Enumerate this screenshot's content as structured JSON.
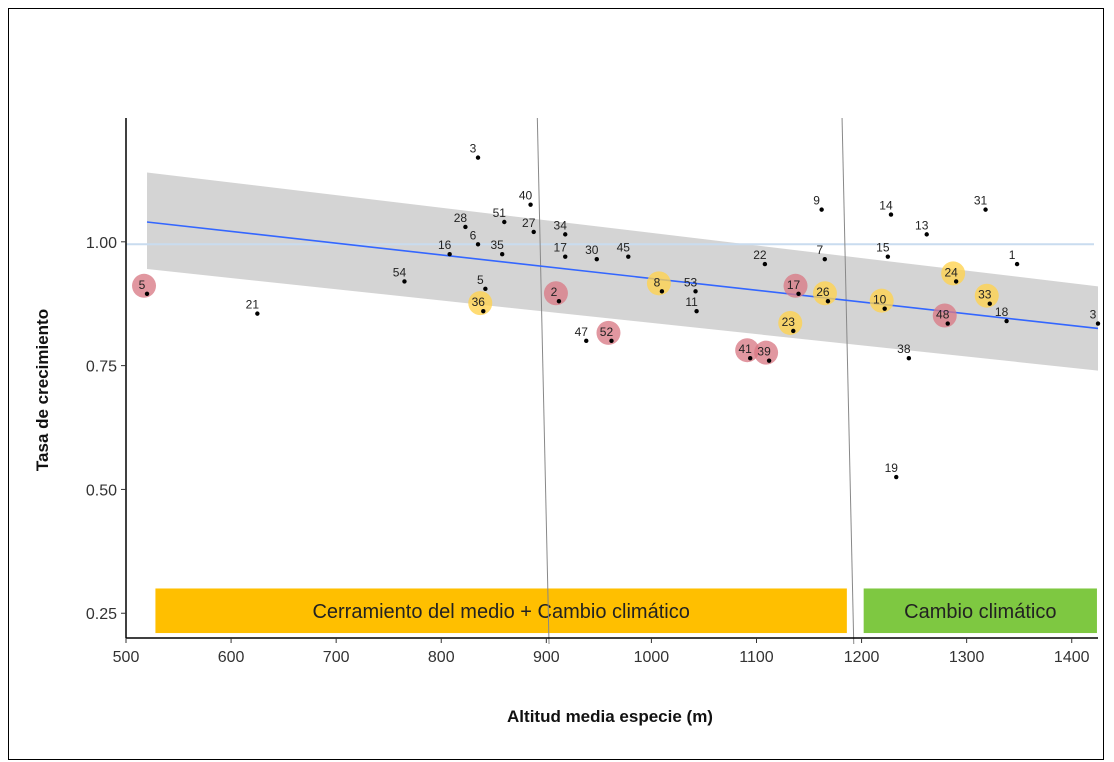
{
  "chart_data": {
    "type": "scatter",
    "title": "",
    "xlabel": "Altitud media especie (m)",
    "ylabel": "Tasa de crecimiento",
    "xlim": [
      500,
      1425
    ],
    "ylim": [
      0.2,
      1.25
    ],
    "x_ticks": [
      "500",
      "600",
      "700",
      "800",
      "900",
      "1000",
      "1100",
      "1200",
      "1300",
      "1400"
    ],
    "y_ticks": [
      "0.25",
      "0.50",
      "0.75",
      "1.00"
    ],
    "x_tick_values": [
      500,
      600,
      700,
      800,
      900,
      1000,
      1100,
      1200,
      1300,
      1400
    ],
    "y_tick_values": [
      0.25,
      0.5,
      0.75,
      1.0
    ],
    "grid": false,
    "reference_line_y": 0.995,
    "vertical_lines_x": [
      900,
      1190
    ],
    "regression": {
      "x": [
        520,
        1425
      ],
      "y": [
        1.04,
        0.825
      ],
      "ci_lower": [
        0.945,
        0.74
      ],
      "ci_upper": [
        1.14,
        0.91
      ],
      "line_color": "#3366ff",
      "band_color": "#cccccc"
    },
    "highlight_colors": {
      "red": "#d97a85",
      "yellow": "#ffd24d"
    },
    "points": [
      {
        "label": "5",
        "x": 520,
        "y": 0.895,
        "highlight": "red"
      },
      {
        "label": "21",
        "x": 625,
        "y": 0.855,
        "highlight": ""
      },
      {
        "label": "54",
        "x": 765,
        "y": 0.92,
        "highlight": ""
      },
      {
        "label": "16",
        "x": 808,
        "y": 0.975,
        "highlight": ""
      },
      {
        "label": "28",
        "x": 823,
        "y": 1.03,
        "highlight": ""
      },
      {
        "label": "6",
        "x": 835,
        "y": 0.995,
        "highlight": ""
      },
      {
        "label": "3",
        "x": 835,
        "y": 1.17,
        "highlight": ""
      },
      {
        "label": "5",
        "x": 842,
        "y": 0.905,
        "highlight": ""
      },
      {
        "label": "36",
        "x": 840,
        "y": 0.86,
        "highlight": "yellow"
      },
      {
        "label": "35",
        "x": 858,
        "y": 0.975,
        "highlight": ""
      },
      {
        "label": "51",
        "x": 860,
        "y": 1.04,
        "highlight": ""
      },
      {
        "label": "40",
        "x": 885,
        "y": 1.075,
        "highlight": ""
      },
      {
        "label": "27",
        "x": 888,
        "y": 1.02,
        "highlight": ""
      },
      {
        "label": "34",
        "x": 918,
        "y": 1.015,
        "highlight": ""
      },
      {
        "label": "17",
        "x": 918,
        "y": 0.97,
        "highlight": ""
      },
      {
        "label": "2",
        "x": 912,
        "y": 0.88,
        "highlight": "red"
      },
      {
        "label": "30",
        "x": 948,
        "y": 0.965,
        "highlight": ""
      },
      {
        "label": "45",
        "x": 978,
        "y": 0.97,
        "highlight": ""
      },
      {
        "label": "47",
        "x": 938,
        "y": 0.8,
        "highlight": ""
      },
      {
        "label": "52",
        "x": 962,
        "y": 0.8,
        "highlight": "red"
      },
      {
        "label": "8",
        "x": 1010,
        "y": 0.9,
        "highlight": "yellow"
      },
      {
        "label": "53",
        "x": 1042,
        "y": 0.9,
        "highlight": ""
      },
      {
        "label": "11",
        "x": 1043,
        "y": 0.86,
        "highlight": ""
      },
      {
        "label": "22",
        "x": 1108,
        "y": 0.955,
        "highlight": ""
      },
      {
        "label": "41",
        "x": 1094,
        "y": 0.765,
        "highlight": "red"
      },
      {
        "label": "39",
        "x": 1112,
        "y": 0.76,
        "highlight": "red"
      },
      {
        "label": "17",
        "x": 1140,
        "y": 0.895,
        "highlight": "red"
      },
      {
        "label": "9",
        "x": 1162,
        "y": 1.065,
        "highlight": ""
      },
      {
        "label": "7",
        "x": 1165,
        "y": 0.965,
        "highlight": ""
      },
      {
        "label": "26",
        "x": 1168,
        "y": 0.88,
        "highlight": "yellow"
      },
      {
        "label": "23",
        "x": 1135,
        "y": 0.82,
        "highlight": "yellow"
      },
      {
        "label": "14",
        "x": 1228,
        "y": 1.055,
        "highlight": ""
      },
      {
        "label": "15",
        "x": 1225,
        "y": 0.97,
        "highlight": ""
      },
      {
        "label": "10",
        "x": 1222,
        "y": 0.865,
        "highlight": "yellow"
      },
      {
        "label": "13",
        "x": 1262,
        "y": 1.015,
        "highlight": ""
      },
      {
        "label": "38",
        "x": 1245,
        "y": 0.765,
        "highlight": ""
      },
      {
        "label": "19",
        "x": 1233,
        "y": 0.525,
        "highlight": ""
      },
      {
        "label": "24",
        "x": 1290,
        "y": 0.92,
        "highlight": "yellow"
      },
      {
        "label": "48",
        "x": 1282,
        "y": 0.835,
        "highlight": "red"
      },
      {
        "label": "31",
        "x": 1318,
        "y": 1.065,
        "highlight": ""
      },
      {
        "label": "33",
        "x": 1322,
        "y": 0.875,
        "highlight": "yellow"
      },
      {
        "label": "1",
        "x": 1348,
        "y": 0.955,
        "highlight": ""
      },
      {
        "label": "18",
        "x": 1338,
        "y": 0.84,
        "highlight": ""
      },
      {
        "label": "3",
        "x": 1425,
        "y": 0.835,
        "highlight": ""
      }
    ],
    "annotations": [
      {
        "text": "Cerramiento del medio + Cambio climático",
        "x_start": 528,
        "x_end": 1186,
        "y_start": 0.21,
        "y_end": 0.3,
        "color": "#ffbf00"
      },
      {
        "text": "Cambio climático",
        "x_start": 1202,
        "x_end": 1424,
        "y_start": 0.21,
        "y_end": 0.3,
        "color": "#7ec841"
      }
    ]
  }
}
